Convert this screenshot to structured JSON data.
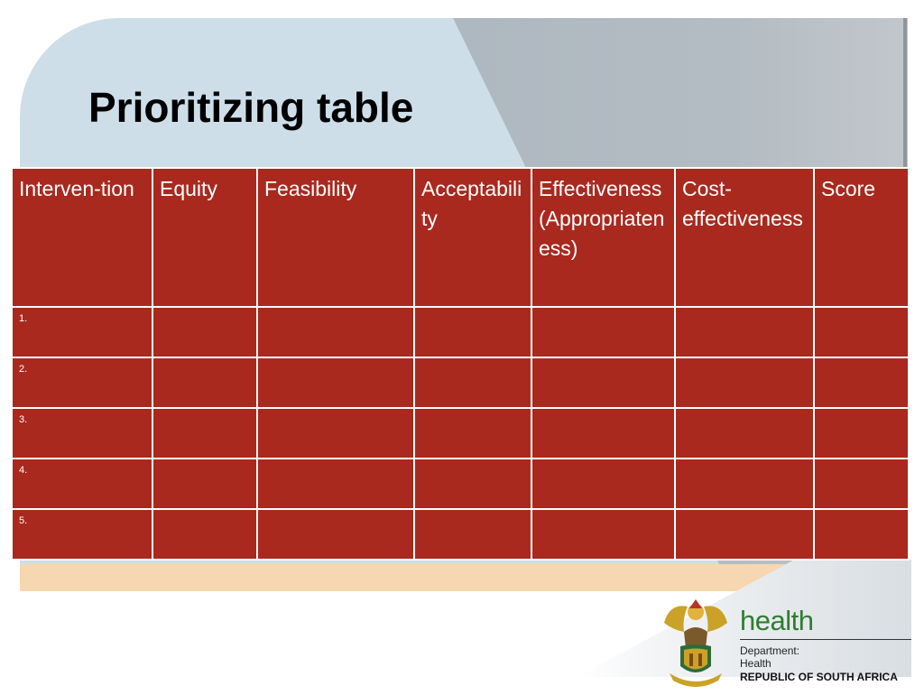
{
  "slide": {
    "title": "Prioritizing table"
  },
  "table": {
    "headers": [
      "Interven-tion",
      "Equity",
      "Feasibility",
      "Acceptability",
      "Effectiveness (Appropriateness)",
      "Cost-effectiveness",
      "Score"
    ],
    "rows": [
      [
        "1.",
        "",
        "",
        "",
        "",
        "",
        ""
      ],
      [
        "2.",
        "",
        "",
        "",
        "",
        "",
        ""
      ],
      [
        "3.",
        "",
        "",
        "",
        "",
        "",
        ""
      ],
      [
        "4.",
        "",
        "",
        "",
        "",
        "",
        ""
      ],
      [
        "5.",
        "",
        "",
        "",
        "",
        "",
        ""
      ]
    ]
  },
  "footer": {
    "brand": "health",
    "department_line1": "Department:",
    "department_line2": "Health",
    "country": "REPUBLIC OF SOUTH AFRICA"
  },
  "colors": {
    "table_fill": "#a9291e",
    "table_border": "#ffffff",
    "background_blue": "#cddee9",
    "background_grey": "#aeb8c0",
    "band_tan": "#f6d7b2",
    "brand_green": "#2e7d32"
  },
  "icons": {
    "logo": "coat-of-arms-icon"
  }
}
